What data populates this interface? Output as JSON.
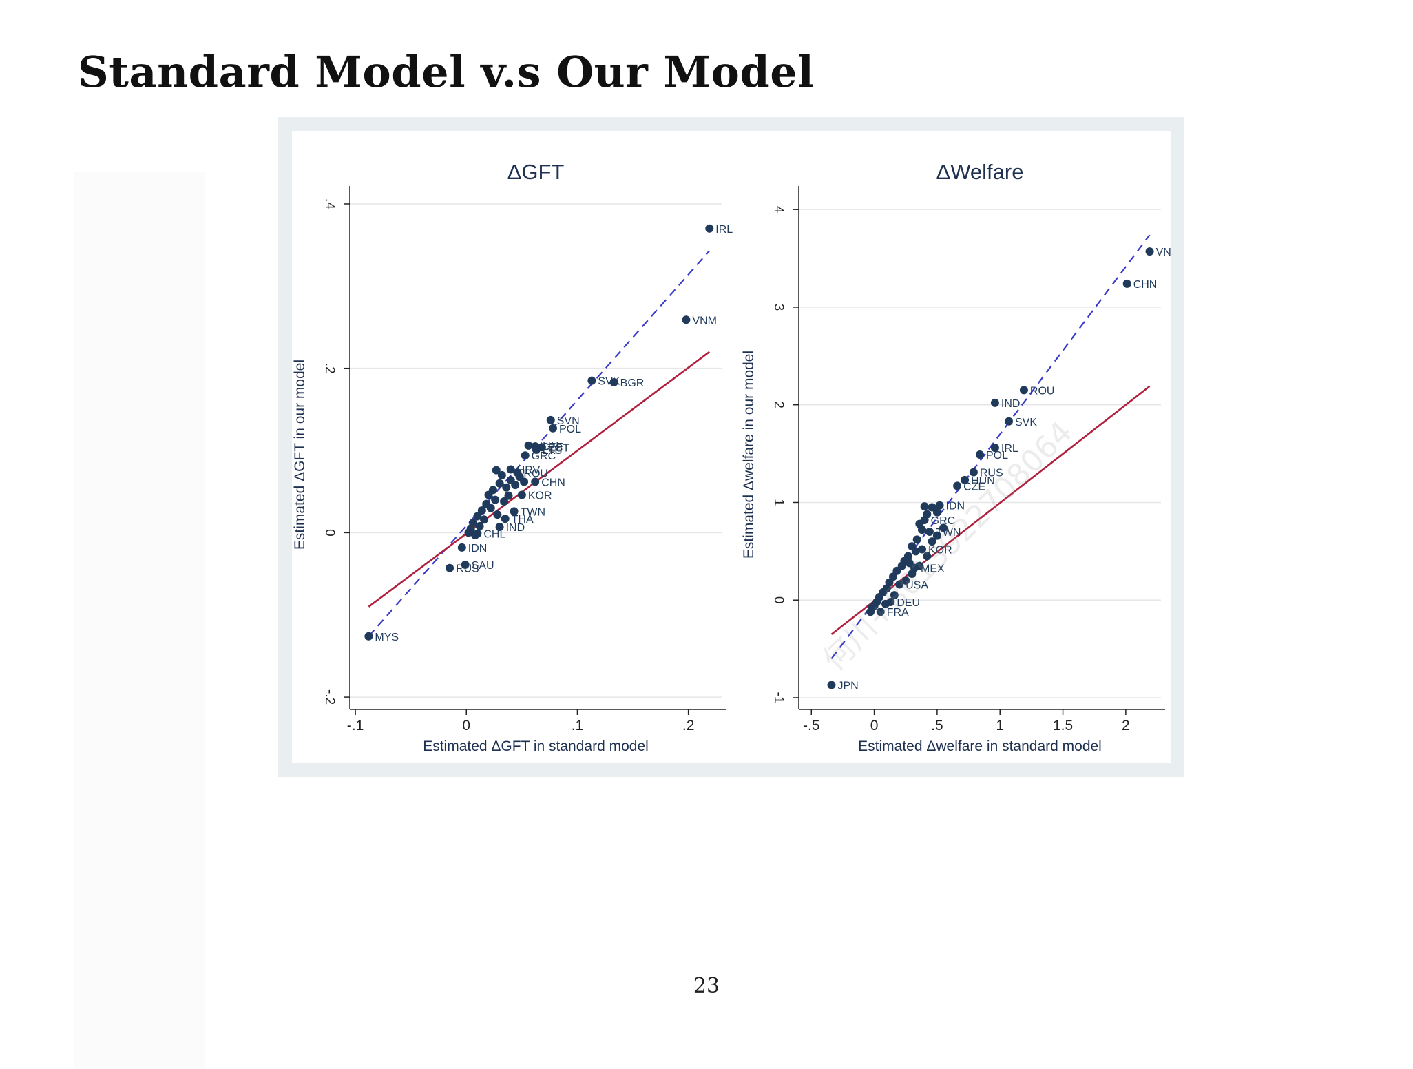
{
  "slide": {
    "title": "Standard Model v.s Our Model",
    "page_number": "23",
    "watermark": "何川+8613922708064"
  },
  "colors": {
    "points": "#1f3a5a",
    "labels": "#1f3a5a",
    "fit_line": "#b0203c",
    "diagonal": "#3a3ac8",
    "axis": "#222222",
    "grid": "#e4e6e8",
    "figure_frame": "#e9eef0"
  },
  "chart_data": [
    {
      "type": "scatter",
      "title": "ΔGFT",
      "xlabel": "Estimated ΔGFT in standard model",
      "ylabel": "Estimated ΔGFT in our model",
      "xlim": [
        -0.105,
        0.23
      ],
      "ylim": [
        -0.215,
        0.405
      ],
      "xticks": [
        -0.1,
        0,
        0.1,
        0.2
      ],
      "xtick_labels": [
        "-.1",
        "0",
        ".1",
        ".2"
      ],
      "yticks": [
        -0.2,
        0,
        0.2,
        0.4
      ],
      "ytick_labels": [
        "-.2",
        "0",
        ".2",
        ".4"
      ],
      "grid": true,
      "points": [
        {
          "x": 0.219,
          "y": 0.37,
          "label": "IRL"
        },
        {
          "x": 0.198,
          "y": 0.259,
          "label": "VNM"
        },
        {
          "x": 0.113,
          "y": 0.185,
          "label": "SVK"
        },
        {
          "x": 0.133,
          "y": 0.183,
          "label": "BGR"
        },
        {
          "x": 0.076,
          "y": 0.137,
          "label": "SVN"
        },
        {
          "x": 0.078,
          "y": 0.127,
          "label": "POL"
        },
        {
          "x": 0.056,
          "y": 0.106,
          "label": "HUN"
        },
        {
          "x": 0.062,
          "y": 0.105,
          "label": "CZE"
        },
        {
          "x": 0.068,
          "y": 0.104,
          "label": "EST"
        },
        {
          "x": 0.063,
          "y": 0.101,
          "label": "LTU"
        },
        {
          "x": 0.053,
          "y": 0.094,
          "label": "GRC"
        },
        {
          "x": 0.04,
          "y": 0.077,
          "label": "HRV"
        },
        {
          "x": 0.046,
          "y": 0.073,
          "label": "ROU"
        },
        {
          "x": 0.062,
          "y": 0.062,
          "label": "CHN"
        },
        {
          "x": 0.05,
          "y": 0.046,
          "label": "KOR"
        },
        {
          "x": 0.043,
          "y": 0.026,
          "label": "TWN"
        },
        {
          "x": 0.035,
          "y": 0.017,
          "label": "THA"
        },
        {
          "x": 0.03,
          "y": 0.007,
          "label": "IND"
        },
        {
          "x": 0.01,
          "y": -0.001,
          "label": "CHL"
        },
        {
          "x": -0.004,
          "y": -0.018,
          "label": "IDN"
        },
        {
          "x": -0.001,
          "y": -0.039,
          "label": "SAU"
        },
        {
          "x": -0.015,
          "y": -0.043,
          "label": "RUS"
        },
        {
          "x": -0.088,
          "y": -0.126,
          "label": "MYS"
        },
        {
          "x": 0.027,
          "y": 0.076
        },
        {
          "x": 0.032,
          "y": 0.07
        },
        {
          "x": 0.02,
          "y": 0.046
        },
        {
          "x": 0.024,
          "y": 0.052
        },
        {
          "x": 0.03,
          "y": 0.06
        },
        {
          "x": 0.036,
          "y": 0.055
        },
        {
          "x": 0.04,
          "y": 0.064
        },
        {
          "x": 0.044,
          "y": 0.058
        },
        {
          "x": 0.018,
          "y": 0.035
        },
        {
          "x": 0.014,
          "y": 0.027
        },
        {
          "x": 0.01,
          "y": 0.02
        },
        {
          "x": 0.006,
          "y": 0.012
        },
        {
          "x": 0.004,
          "y": 0.005
        },
        {
          "x": 0.022,
          "y": 0.03
        },
        {
          "x": 0.026,
          "y": 0.04
        },
        {
          "x": 0.012,
          "y": 0.008
        },
        {
          "x": 0.016,
          "y": 0.016
        },
        {
          "x": 0.008,
          "y": -0.003
        },
        {
          "x": 0.002,
          "y": 0.0
        },
        {
          "x": 0.034,
          "y": 0.038
        },
        {
          "x": 0.038,
          "y": 0.045
        },
        {
          "x": 0.028,
          "y": 0.022
        },
        {
          "x": 0.048,
          "y": 0.068
        },
        {
          "x": 0.052,
          "y": 0.062
        }
      ],
      "fit_line": {
        "x": [
          -0.088,
          0.219
        ],
        "y": [
          -0.09,
          0.22
        ]
      },
      "diagonal_line": {
        "x": [
          -0.088,
          0.219
        ],
        "y": [
          -0.126,
          0.343
        ]
      }
    },
    {
      "type": "scatter",
      "title": "ΔWelfare",
      "xlabel": "Estimated Δwelfare in standard model",
      "ylabel": "Estimated Δwelfare in our model",
      "xlim": [
        -0.6,
        2.28
      ],
      "ylim": [
        -1.12,
        4.1
      ],
      "xticks": [
        -0.5,
        0,
        0.5,
        1,
        1.5,
        2
      ],
      "xtick_labels": [
        "-.5",
        "0",
        ".5",
        "1",
        "1.5",
        "2"
      ],
      "yticks": [
        -1,
        0,
        1,
        2,
        3,
        4
      ],
      "ytick_labels": [
        "-1",
        "0",
        "1",
        "2",
        "3",
        "4"
      ],
      "grid": true,
      "points": [
        {
          "x": 2.19,
          "y": 3.57,
          "label": "VNM"
        },
        {
          "x": 2.01,
          "y": 3.24,
          "label": "CHN"
        },
        {
          "x": 1.19,
          "y": 2.15,
          "label": "ROU"
        },
        {
          "x": 0.96,
          "y": 2.02,
          "label": "IND"
        },
        {
          "x": 1.07,
          "y": 1.83,
          "label": "SVK"
        },
        {
          "x": 0.96,
          "y": 1.56,
          "label": "IRL"
        },
        {
          "x": 0.84,
          "y": 1.49,
          "label": "POL"
        },
        {
          "x": 0.79,
          "y": 1.31,
          "label": "RUS"
        },
        {
          "x": 0.72,
          "y": 1.23,
          "label": "HUN"
        },
        {
          "x": 0.66,
          "y": 1.17,
          "label": "CZE"
        },
        {
          "x": 0.52,
          "y": 0.97,
          "label": "IDN"
        },
        {
          "x": 0.4,
          "y": 0.82,
          "label": "GRC"
        },
        {
          "x": 0.44,
          "y": 0.7,
          "label": "TWN"
        },
        {
          "x": 0.38,
          "y": 0.52,
          "label": "KOR"
        },
        {
          "x": 0.32,
          "y": 0.33,
          "label": "MEX"
        },
        {
          "x": 0.2,
          "y": 0.16,
          "label": "USA"
        },
        {
          "x": 0.13,
          "y": -0.02,
          "label": "DEU"
        },
        {
          "x": 0.05,
          "y": -0.12,
          "label": "FRA"
        },
        {
          "x": -0.34,
          "y": -0.87,
          "label": "JPN"
        },
        {
          "x": 0.4,
          "y": 0.96
        },
        {
          "x": 0.46,
          "y": 0.95
        },
        {
          "x": 0.5,
          "y": 0.9
        },
        {
          "x": 0.42,
          "y": 0.88
        },
        {
          "x": 0.36,
          "y": 0.78
        },
        {
          "x": 0.38,
          "y": 0.72
        },
        {
          "x": 0.34,
          "y": 0.62
        },
        {
          "x": 0.3,
          "y": 0.55
        },
        {
          "x": 0.33,
          "y": 0.5
        },
        {
          "x": 0.27,
          "y": 0.45
        },
        {
          "x": 0.24,
          "y": 0.4
        },
        {
          "x": 0.28,
          "y": 0.38
        },
        {
          "x": 0.22,
          "y": 0.35
        },
        {
          "x": 0.18,
          "y": 0.3
        },
        {
          "x": 0.15,
          "y": 0.24
        },
        {
          "x": 0.12,
          "y": 0.18
        },
        {
          "x": 0.1,
          "y": 0.12
        },
        {
          "x": 0.07,
          "y": 0.08
        },
        {
          "x": 0.04,
          "y": 0.03
        },
        {
          "x": 0.02,
          "y": -0.02
        },
        {
          "x": -0.02,
          "y": -0.08
        },
        {
          "x": -0.03,
          "y": -0.12
        },
        {
          "x": 0.0,
          "y": -0.06
        },
        {
          "x": 0.09,
          "y": -0.04
        },
        {
          "x": 0.16,
          "y": 0.05
        },
        {
          "x": 0.25,
          "y": 0.2
        },
        {
          "x": 0.3,
          "y": 0.27
        },
        {
          "x": 0.36,
          "y": 0.35
        },
        {
          "x": 0.42,
          "y": 0.45
        },
        {
          "x": 0.46,
          "y": 0.6
        },
        {
          "x": 0.5,
          "y": 0.66
        },
        {
          "x": 0.55,
          "y": 0.74
        }
      ],
      "fit_line": {
        "x": [
          -0.34,
          2.19
        ],
        "y": [
          -0.35,
          2.19
        ]
      },
      "diagonal_line": {
        "x": [
          -0.34,
          2.19
        ],
        "y": [
          -0.6,
          3.74
        ]
      }
    }
  ]
}
